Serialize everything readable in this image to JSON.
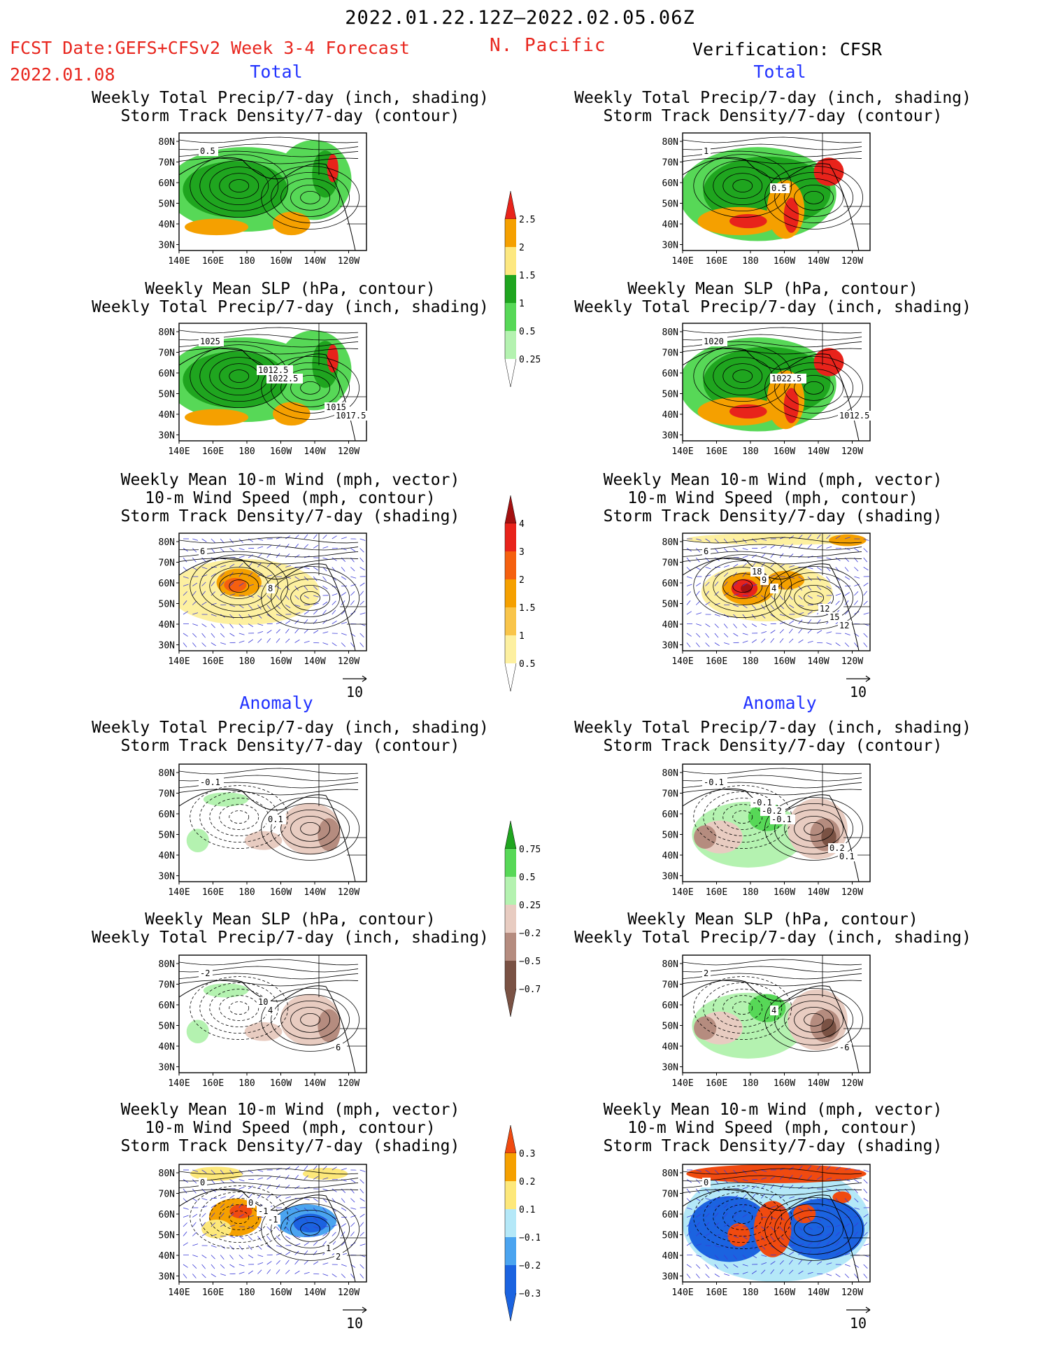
{
  "header": {
    "period": "2022.01.22.12Z–2022.02.05.06Z",
    "fcst_label": "FCST Date:GEFS+CFSv2 Week 3-4 Forecast",
    "fcst_date": "2022.01.08",
    "region": "N. Pacific",
    "verification": "Verification: CFSR"
  },
  "sections": {
    "total_left": "Total",
    "total_right": "Total",
    "anomaly_left": "Anomaly",
    "anomaly_right": "Anomaly"
  },
  "titles": {
    "precip_track": [
      "Weekly Total Precip/7-day (inch, shading)",
      "Storm Track Density/7-day (contour)"
    ],
    "slp_precip": [
      "Weekly Mean SLP (hPa, contour)",
      "Weekly Total Precip/7-day (inch, shading)"
    ],
    "wind": [
      "Weekly Mean 10-m Wind (mph, vector)",
      "10-m Wind Speed (mph, contour)",
      "Storm Track Density/7-day (shading)"
    ]
  },
  "axes": {
    "lat_labels": [
      "80N",
      "70N",
      "60N",
      "50N",
      "40N",
      "30N"
    ],
    "lon_labels": [
      "140E",
      "160E",
      "180",
      "160W",
      "140W",
      "120W"
    ]
  },
  "vector_ref": "10",
  "colorbars": {
    "precip_total": {
      "labels": [
        "2.5",
        "2",
        "1.5",
        "1",
        "0.5",
        "0.25"
      ],
      "colors": [
        "#e8231b",
        "#f5a000",
        "#fde880",
        "#1fa51f",
        "#57d857",
        "#b4f2b0"
      ]
    },
    "track_total": {
      "labels": [
        "4",
        "3",
        "2",
        "1.5",
        "1",
        "0.5"
      ],
      "colors": [
        "#a41010",
        "#e8231b",
        "#f5600f",
        "#f5a000",
        "#f9c54a",
        "#fdf0a0"
      ]
    },
    "precip_anom": {
      "labels": [
        "0.75",
        "0.5",
        "0.25",
        "−0.25",
        "−0.5",
        "−0.75"
      ],
      "colors": [
        "#1fa51f",
        "#57d857",
        "#b4f2b0",
        "#e8ccc1",
        "#b58c7f",
        "#7a5244"
      ]
    },
    "track_anom": {
      "labels": [
        "0.3",
        "0.2",
        "0.1",
        "−0.1",
        "−0.2",
        "−0.3"
      ],
      "colors": [
        "#f04a10",
        "#f5a000",
        "#fde87a",
        "#b4e8f8",
        "#4aa4f0",
        "#1b63e0"
      ]
    }
  },
  "panel_labels": {
    "fcst_precip_track": [
      "0.5"
    ],
    "cfsr_precip_track": [
      "1",
      "0.5"
    ],
    "fcst_slp": [
      "1025",
      "1022.5",
      "1017.5",
      "1012.5",
      "1015"
    ],
    "cfsr_slp": [
      "1020",
      "1022.5",
      "1012.5"
    ],
    "fcst_wind": [
      "6",
      "8"
    ],
    "cfsr_wind": [
      "6",
      "4",
      "12",
      "9",
      "15",
      "18",
      "12"
    ],
    "fcst_anom_precip": [
      "-0.1",
      "0.1"
    ],
    "cfsr_anom_precip": [
      "-0.1",
      "-0.1",
      "0.1",
      "-0.2",
      "0.2",
      "-0.1"
    ],
    "fcst_anom_slp": [
      "-2",
      "4",
      "6",
      "10"
    ],
    "cfsr_anom_slp": [
      "2",
      "4",
      "-6"
    ],
    "fcst_anom_wind": [
      "0",
      "-1",
      "2",
      "-1",
      "1",
      "0"
    ],
    "cfsr_anom_wind": [
      "0"
    ]
  }
}
